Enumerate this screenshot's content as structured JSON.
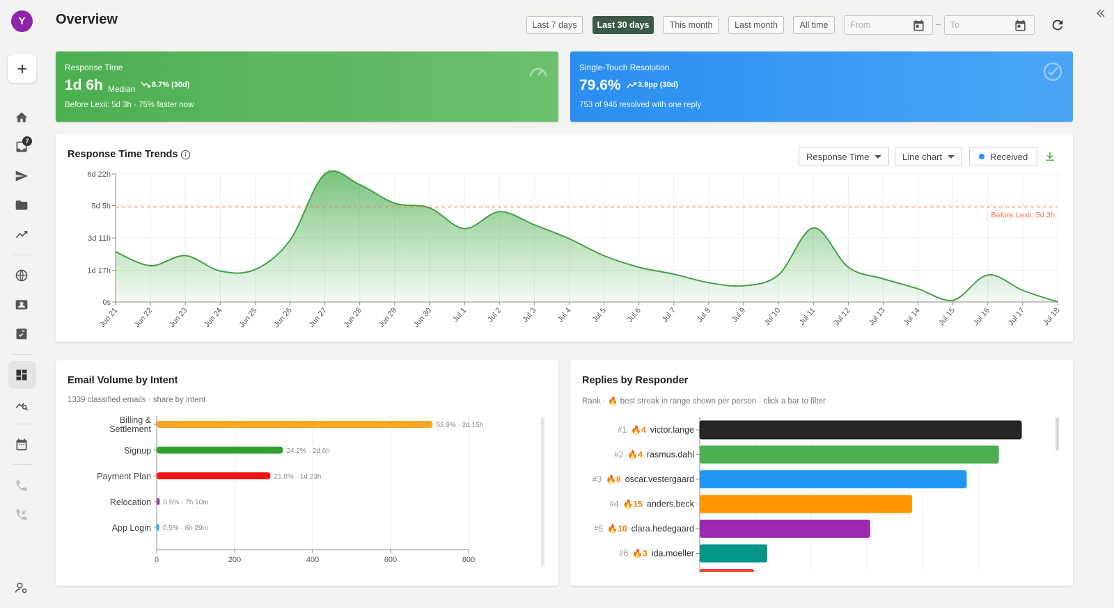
{
  "sidebar": {
    "avatar_initial": "Y",
    "inbox_badge": "7",
    "items": [
      {
        "icon": "home-icon"
      },
      {
        "icon": "inbox-icon"
      },
      {
        "icon": "send-icon"
      },
      {
        "icon": "folder-icon"
      },
      {
        "icon": "trending-icon"
      },
      {
        "icon": "globe-icon"
      },
      {
        "icon": "contacts-icon"
      },
      {
        "icon": "checklist-icon"
      },
      {
        "icon": "dashboard-icon"
      },
      {
        "icon": "analytics-icon"
      },
      {
        "icon": "calendar-icon"
      },
      {
        "icon": "phone-icon"
      },
      {
        "icon": "missed-call-icon"
      },
      {
        "icon": "user-settings-icon"
      }
    ]
  },
  "header": {
    "title": "Overview",
    "ranges": [
      "Last 7 days",
      "Last 30 days",
      "This month",
      "Last month",
      "All time"
    ],
    "active_range": "Last 30 days",
    "from_placeholder": "From",
    "to_placeholder": "To",
    "dash": "–"
  },
  "kpis": {
    "response": {
      "label": "Response Time",
      "value": "1d 6h",
      "sub": "Median",
      "trend": "8.7% (30d)",
      "footer": "Before Lexii: 5d 3h · 75% faster now",
      "color": "#4caf50"
    },
    "resolution": {
      "label": "Single-Touch Resolution",
      "value": "79.6%",
      "trend": "3.9pp (30d)",
      "footer": "753 of 946 resolved with one reply",
      "color": "#2a8ef0"
    }
  },
  "trends": {
    "title": "Response Time Trends",
    "metric_select": "Response Time",
    "chart_select": "Line chart",
    "series_toggle": "Received"
  },
  "intent": {
    "title": "Email Volume by Intent",
    "subtitle": "1339 classified emails · share by intent"
  },
  "responders": {
    "title": "Replies by Responder",
    "subtitle": "Rank · 🔥 best streak in range shown per person · click a bar to filter"
  },
  "chart_data": [
    {
      "type": "area",
      "title": "Response Time Trends",
      "x": [
        "Jun 21",
        "Jun 22",
        "Jun 23",
        "Jun 24",
        "Jun 25",
        "Jun 26",
        "Jun 27",
        "Jun 28",
        "Jun 29",
        "Jun 30",
        "Jul 1",
        "Jul 2",
        "Jul 3",
        "Jul 4",
        "Jul 5",
        "Jul 6",
        "Jul 7",
        "Jul 8",
        "Jul 9",
        "Jul 10",
        "Jul 11",
        "Jul 12",
        "Jul 13",
        "Jul 14",
        "Jul 15",
        "Jul 16",
        "Jul 17",
        "Jul 18"
      ],
      "y_ticks": [
        "0s",
        "1d 17h",
        "3d 11h",
        "5d 5h",
        "6d 22h"
      ],
      "y_tick_hours": [
        0,
        41,
        83,
        125,
        166
      ],
      "ylim_hours": [
        0,
        166
      ],
      "series": [
        {
          "color": "#4caf50",
          "values_hours": [
            65,
            47,
            60,
            40,
            42,
            80,
            166,
            152,
            128,
            122,
            95,
            117,
            100,
            82,
            60,
            45,
            36,
            25,
            21,
            35,
            96,
            45,
            30,
            17,
            2,
            35,
            15,
            0
          ]
        }
      ],
      "reference_line": {
        "label": "Before Lexii: 5d 3h",
        "value_hours": 123,
        "color": "#f08060"
      },
      "grid": true
    },
    {
      "type": "bar",
      "orientation": "horizontal",
      "title": "Email Volume by Intent",
      "categories": [
        "Billing & Settlement",
        "Signup",
        "Payment Plan",
        "Relocation",
        "App Login"
      ],
      "values": [
        708,
        324,
        292,
        8,
        7
      ],
      "labels": [
        "52.9% · 2d 15h",
        "24.2% · 2d 6h",
        "21.8% · 1d 23h",
        "0.6% · 7h 10m",
        "0.5% · 6h 29m"
      ],
      "colors": [
        "#f9a825",
        "#2e9e2e",
        "#f01414",
        "#8e44ad",
        "#29b6f6"
      ],
      "x_ticks": [
        0,
        200,
        400,
        600,
        800
      ],
      "xlim": [
        0,
        800
      ],
      "grid": true
    },
    {
      "type": "bar",
      "orientation": "horizontal",
      "title": "Replies by Responder",
      "categories": [
        "victor.lange",
        "rasmus.dahl",
        "oscar.vestergaard",
        "anders.beck",
        "clara.hedegaard",
        "ida.moeller"
      ],
      "ranks": [
        "#1",
        "#2",
        "#3",
        "#4",
        "#5",
        "#6"
      ],
      "streaks": [
        "🔥4",
        "🔥4",
        "🔥8",
        "🔥15",
        "🔥10",
        "🔥3"
      ],
      "values": [
        100,
        93,
        83,
        66,
        53,
        21
      ],
      "colors": [
        "#262626",
        "#4caf50",
        "#2196f3",
        "#ff9800",
        "#9c27b0",
        "#009688"
      ],
      "partial_next_color": "#f44336",
      "grid": true
    }
  ]
}
